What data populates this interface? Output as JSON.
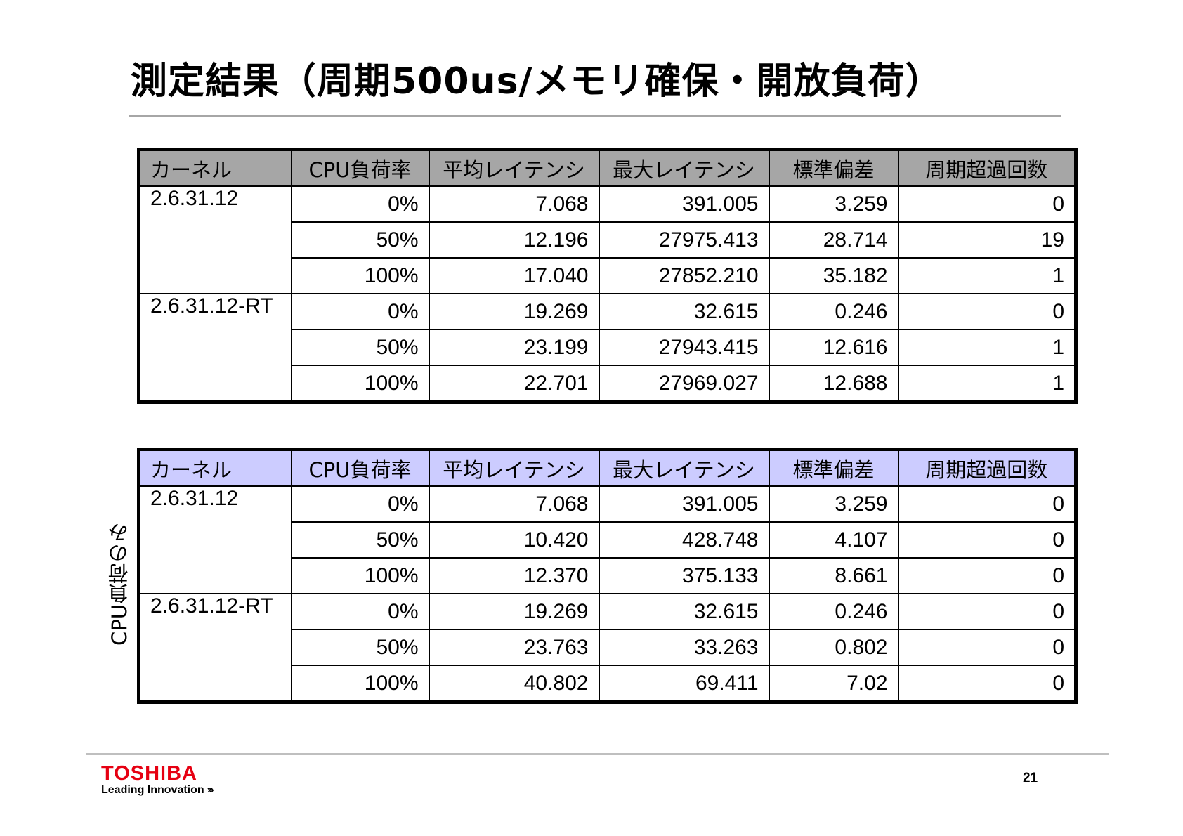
{
  "slide": {
    "title": "測定結果（周期500us/メモリ確保・開放負荷）",
    "side_label": "CPU負荷のみ",
    "page_number": "21"
  },
  "logo": {
    "brand": "TOSHIBA",
    "tagline": "Leading Innovation",
    "tagline_mark": "›››",
    "brand_color": "#e60012"
  },
  "colors": {
    "table1_header": "#a6a6a6",
    "table2_header": "#ccccff"
  },
  "table1": {
    "headers": [
      "カーネル",
      "CPU負荷率",
      "平均レイテンシ",
      "最大レイテンシ",
      "標準偏差",
      "周期超過回数"
    ],
    "rows": [
      {
        "kernel": "2.6.31.12",
        "load": "0%",
        "avg": "7.068",
        "max": "391.005",
        "std": "3.259",
        "over": "0"
      },
      {
        "load": "50%",
        "avg": "12.196",
        "max": "27975.413",
        "std": "28.714",
        "over": "19"
      },
      {
        "load": "100%",
        "avg": "17.040",
        "max": "27852.210",
        "std": "35.182",
        "over": "1"
      },
      {
        "kernel": "2.6.31.12-RT",
        "load": "0%",
        "avg": "19.269",
        "max": "32.615",
        "std": "0.246",
        "over": "0"
      },
      {
        "load": "50%",
        "avg": "23.199",
        "max": "27943.415",
        "std": "12.616",
        "over": "1"
      },
      {
        "load": "100%",
        "avg": "22.701",
        "max": "27969.027",
        "std": "12.688",
        "over": "1"
      }
    ]
  },
  "table2": {
    "headers": [
      "カーネル",
      "CPU負荷率",
      "平均レイテンシ",
      "最大レイテンシ",
      "標準偏差",
      "周期超過回数"
    ],
    "rows": [
      {
        "kernel": "2.6.31.12",
        "load": "0%",
        "avg": "7.068",
        "max": "391.005",
        "std": "3.259",
        "over": "0"
      },
      {
        "load": "50%",
        "avg": "10.420",
        "max": "428.748",
        "std": "4.107",
        "over": "0"
      },
      {
        "load": "100%",
        "avg": "12.370",
        "max": "375.133",
        "std": "8.661",
        "over": "0"
      },
      {
        "kernel": "2.6.31.12-RT",
        "load": "0%",
        "avg": "19.269",
        "max": "32.615",
        "std": "0.246",
        "over": "0"
      },
      {
        "load": "50%",
        "avg": "23.763",
        "max": "33.263",
        "std": "0.802",
        "over": "0"
      },
      {
        "load": "100%",
        "avg": "40.802",
        "max": "69.411",
        "std": "7.02",
        "over": "0"
      }
    ]
  }
}
